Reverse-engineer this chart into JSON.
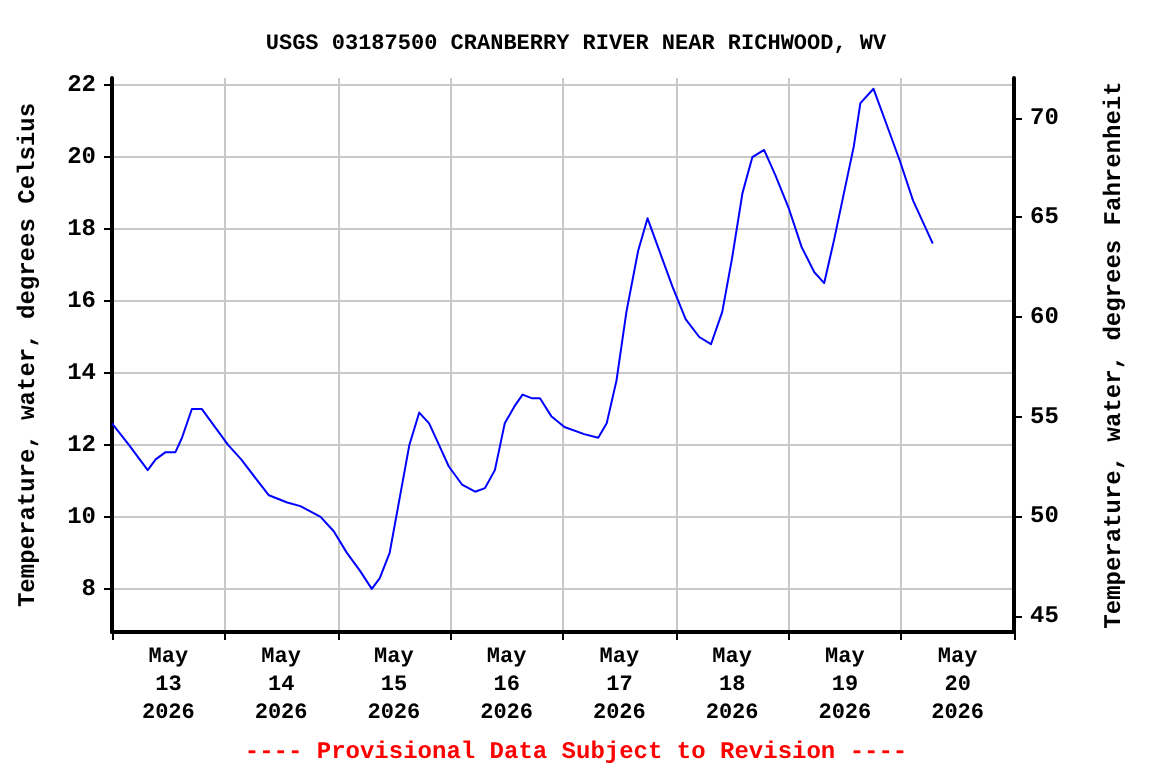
{
  "chart_data": {
    "type": "line",
    "title": "USGS 03187500 CRANBERRY RIVER NEAR RICHWOOD, WV",
    "ylabel": "Temperature, water, degrees Celsius",
    "y2label": "Temperature, water, degrees Fahrenheit",
    "annotations": [
      "---- Provisional Data Subject to Revision ----"
    ],
    "x": [
      "2026-05-13T00:00",
      "2026-05-13T03:36",
      "2026-05-13T07:36",
      "2026-05-13T09:18",
      "2026-05-13T11:24",
      "2026-05-13T13:30",
      "2026-05-13T14:54",
      "2026-05-13T17:00",
      "2026-05-13T19:06",
      "2026-05-13T21:54",
      "2026-05-14T00:42",
      "2026-05-14T03:30",
      "2026-05-14T07:00",
      "2026-05-14T09:24",
      "2026-05-14T13:18",
      "2026-05-14T16:06",
      "2026-05-14T20:24",
      "2026-05-14T23:12",
      "2026-05-15T02:00",
      "2026-05-15T04:48",
      "2026-05-15T07:18",
      "2026-05-15T09:00",
      "2026-05-15T11:06",
      "2026-05-15T13:12",
      "2026-05-15T15:18",
      "2026-05-15T17:24",
      "2026-05-15T19:30",
      "2026-05-15T21:36",
      "2026-05-15T23:42",
      "2026-05-16T02:30",
      "2026-05-16T05:18",
      "2026-05-16T07:24",
      "2026-05-16T09:30",
      "2026-05-16T11:36",
      "2026-05-16T13:48",
      "2026-05-16T15:24",
      "2026-05-16T17:18",
      "2026-05-16T19:06",
      "2026-05-16T21:30",
      "2026-05-17T00:18",
      "2026-05-17T04:30",
      "2026-05-17T07:30",
      "2026-05-17T09:18",
      "2026-05-17T11:24",
      "2026-05-17T13:30",
      "2026-05-17T16:00",
      "2026-05-17T18:00",
      "2026-05-17T20:30",
      "2026-05-17T23:18",
      "2026-05-18T02:06",
      "2026-05-18T05:00",
      "2026-05-18T07:30",
      "2026-05-18T09:54",
      "2026-05-18T12:00",
      "2026-05-18T14:12",
      "2026-05-18T16:18",
      "2026-05-18T18:48",
      "2026-05-18T21:12",
      "2026-05-19T00:00",
      "2026-05-19T02:48",
      "2026-05-19T05:30",
      "2026-05-19T07:36",
      "2026-05-19T09:42",
      "2026-05-19T11:48",
      "2026-05-19T13:54",
      "2026-05-19T15:18",
      "2026-05-19T18:06",
      "2026-05-19T20:54",
      "2026-05-19T23:42",
      "2026-05-20T02:30",
      "2026-05-20T05:18",
      "2026-05-20T06:42"
    ],
    "series": [
      {
        "color": "#0000ff",
        "values": [
          12.6,
          12.0,
          11.3,
          11.6,
          11.8,
          11.8,
          12.2,
          13.0,
          13.0,
          12.5,
          12.0,
          11.6,
          11.0,
          10.6,
          10.4,
          10.3,
          10.0,
          9.6,
          9.0,
          8.5,
          8.0,
          8.3,
          9.0,
          10.5,
          12.0,
          12.9,
          12.6,
          12.0,
          11.4,
          10.9,
          10.7,
          10.8,
          11.3,
          12.6,
          13.1,
          13.4,
          13.3,
          13.3,
          12.8,
          12.5,
          12.3,
          12.2,
          12.6,
          13.8,
          15.7,
          17.4,
          18.3,
          17.4,
          16.4,
          15.5,
          15.0,
          14.8,
          15.7,
          17.2,
          19.0,
          20.0,
          20.2,
          19.5,
          18.6,
          17.5,
          16.8,
          16.5,
          17.7,
          19.0,
          20.3,
          21.5,
          21.9,
          20.9,
          19.9,
          18.8,
          18.0,
          17.6
        ]
      }
    ],
    "xlim": [
      "2026-05-13T00:00",
      "2026-05-21T00:00"
    ],
    "xticks": [
      {
        "value": "2026-05-13T00:00",
        "label": null
      },
      {
        "value": "2026-05-13T12:00",
        "label": "May\n13\n2026"
      },
      {
        "value": "2026-05-14T00:00",
        "label": null
      },
      {
        "value": "2026-05-14T12:00",
        "label": "May\n14\n2026"
      },
      {
        "value": "2026-05-15T00:00",
        "label": null
      },
      {
        "value": "2026-05-15T12:00",
        "label": "May\n15\n2026"
      },
      {
        "value": "2026-05-16T00:00",
        "label": null
      },
      {
        "value": "2026-05-16T12:00",
        "label": "May\n16\n2026"
      },
      {
        "value": "2026-05-17T00:00",
        "label": null
      },
      {
        "value": "2026-05-17T12:00",
        "label": "May\n17\n2026"
      },
      {
        "value": "2026-05-18T00:00",
        "label": null
      },
      {
        "value": "2026-05-18T12:00",
        "label": "May\n18\n2026"
      },
      {
        "value": "2026-05-19T00:00",
        "label": null
      },
      {
        "value": "2026-05-19T12:00",
        "label": "May\n19\n2026"
      },
      {
        "value": "2026-05-20T00:00",
        "label": null
      },
      {
        "value": "2026-05-20T12:00",
        "label": "May\n20\n2026"
      },
      {
        "value": "2026-05-21T00:00",
        "label": null
      }
    ],
    "ylim": [
      6.8,
      22.2
    ],
    "yticks": [
      8,
      10,
      12,
      14,
      16,
      18,
      20,
      22
    ],
    "y2lim": [
      44.2,
      72.0
    ],
    "y2ticks": [
      45,
      50,
      55,
      60,
      65,
      70
    ],
    "grid": true,
    "marker": "none",
    "line_style": "solid"
  }
}
